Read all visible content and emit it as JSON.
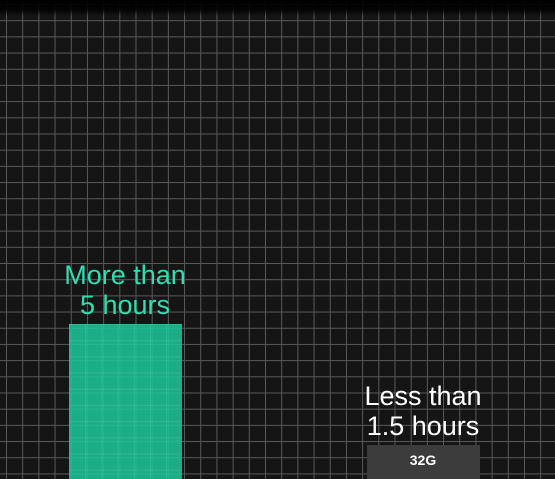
{
  "chart_data": {
    "type": "bar",
    "categories": [
      "More than 5 hours",
      "Less than 1.5 hours"
    ],
    "series": [
      {
        "values": [
          100,
          18
        ]
      }
    ],
    "category_labels": [
      {
        "line1": "More than",
        "line2": "5 hours"
      },
      {
        "line1": "Less than",
        "line2": "1.5 hours"
      }
    ],
    "bar_annotations": [
      "",
      "32G"
    ],
    "colors": [
      "#1cc396",
      "#3c3c3c"
    ],
    "label_colors": [
      "#2ee0b0",
      "#ffffff"
    ],
    "grid": true,
    "legend": "none",
    "axes_visible": false,
    "ylim": [
      0,
      100
    ]
  }
}
